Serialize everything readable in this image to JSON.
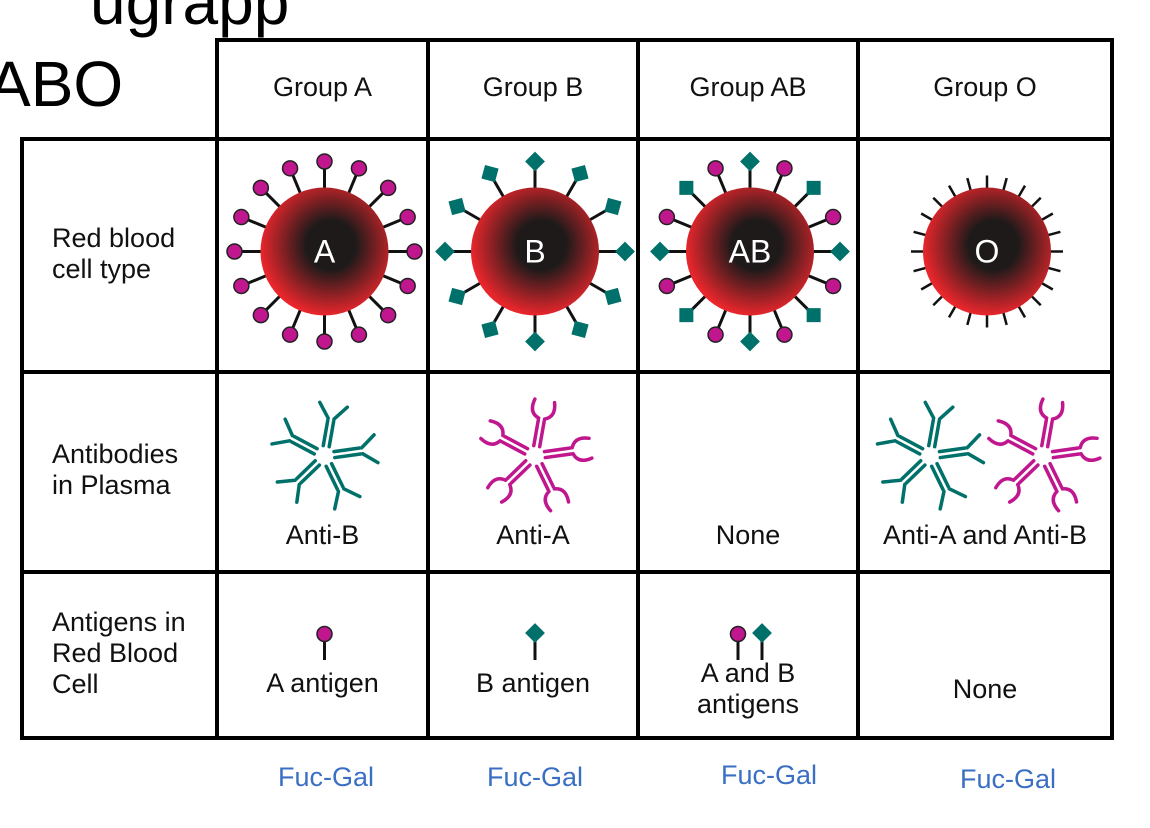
{
  "heading_fragment": "ugrapp",
  "heading": "ABO",
  "columns": [
    "Group A",
    "Group B",
    "Group AB",
    "Group O"
  ],
  "row_labels": [
    "Red blood\ncell type",
    "Antibodies\nin Plasma",
    "Antigens in\nRed Blood\nCell"
  ],
  "cell_letters": [
    "A",
    "B",
    "AB",
    "O"
  ],
  "antibodies": [
    "Anti-B",
    "Anti-A",
    "None",
    "Anti-A and Anti-B"
  ],
  "antigens": [
    "A antigen",
    "B antigen",
    "A and B\nantigens",
    "None"
  ],
  "footer_labels": [
    "Fuc-Gal",
    "Fuc-Gal",
    "Fuc-Gal",
    "Fuc-Gal"
  ],
  "colors": {
    "a_antigen": "#c0178f",
    "b_antigen": "#00706a",
    "cell_red": "#e8262c",
    "footer_text": "#3a6fc4"
  }
}
